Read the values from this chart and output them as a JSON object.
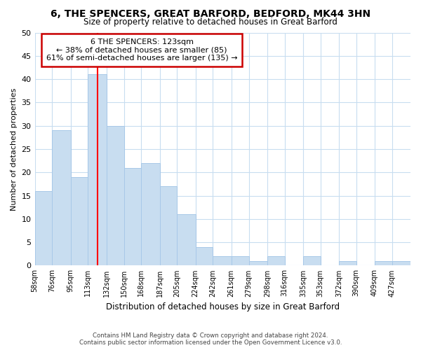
{
  "title": "6, THE SPENCERS, GREAT BARFORD, BEDFORD, MK44 3HN",
  "subtitle": "Size of property relative to detached houses in Great Barford",
  "xlabel": "Distribution of detached houses by size in Great Barford",
  "ylabel": "Number of detached properties",
  "bar_color": "#c8ddf0",
  "bar_edge_color": "#a8c8e8",
  "background_color": "#ffffff",
  "grid_color": "#c8ddf0",
  "annotation_box_edge_color": "#cc0000",
  "annotation_text_line1": "6 THE SPENCERS: 123sqm",
  "annotation_text_line2": "← 38% of detached houses are smaller (85)",
  "annotation_text_line3": "61% of semi-detached houses are larger (135) →",
  "red_line_x": 123,
  "bins": [
    58,
    76,
    95,
    113,
    132,
    150,
    168,
    187,
    205,
    224,
    242,
    261,
    279,
    298,
    316,
    335,
    353,
    372,
    390,
    409,
    427,
    446
  ],
  "bin_labels": [
    "58sqm",
    "76sqm",
    "95sqm",
    "113sqm",
    "132sqm",
    "150sqm",
    "168sqm",
    "187sqm",
    "205sqm",
    "224sqm",
    "242sqm",
    "261sqm",
    "279sqm",
    "298sqm",
    "316sqm",
    "335sqm",
    "353sqm",
    "372sqm",
    "390sqm",
    "409sqm",
    "427sqm"
  ],
  "counts": [
    16,
    29,
    19,
    41,
    30,
    21,
    22,
    17,
    11,
    4,
    2,
    2,
    1,
    2,
    0,
    2,
    0,
    1,
    0,
    1,
    1
  ],
  "ylim": [
    0,
    50
  ],
  "yticks": [
    0,
    5,
    10,
    15,
    20,
    25,
    30,
    35,
    40,
    45,
    50
  ],
  "footer_line1": "Contains HM Land Registry data © Crown copyright and database right 2024.",
  "footer_line2": "Contains public sector information licensed under the Open Government Licence v3.0."
}
